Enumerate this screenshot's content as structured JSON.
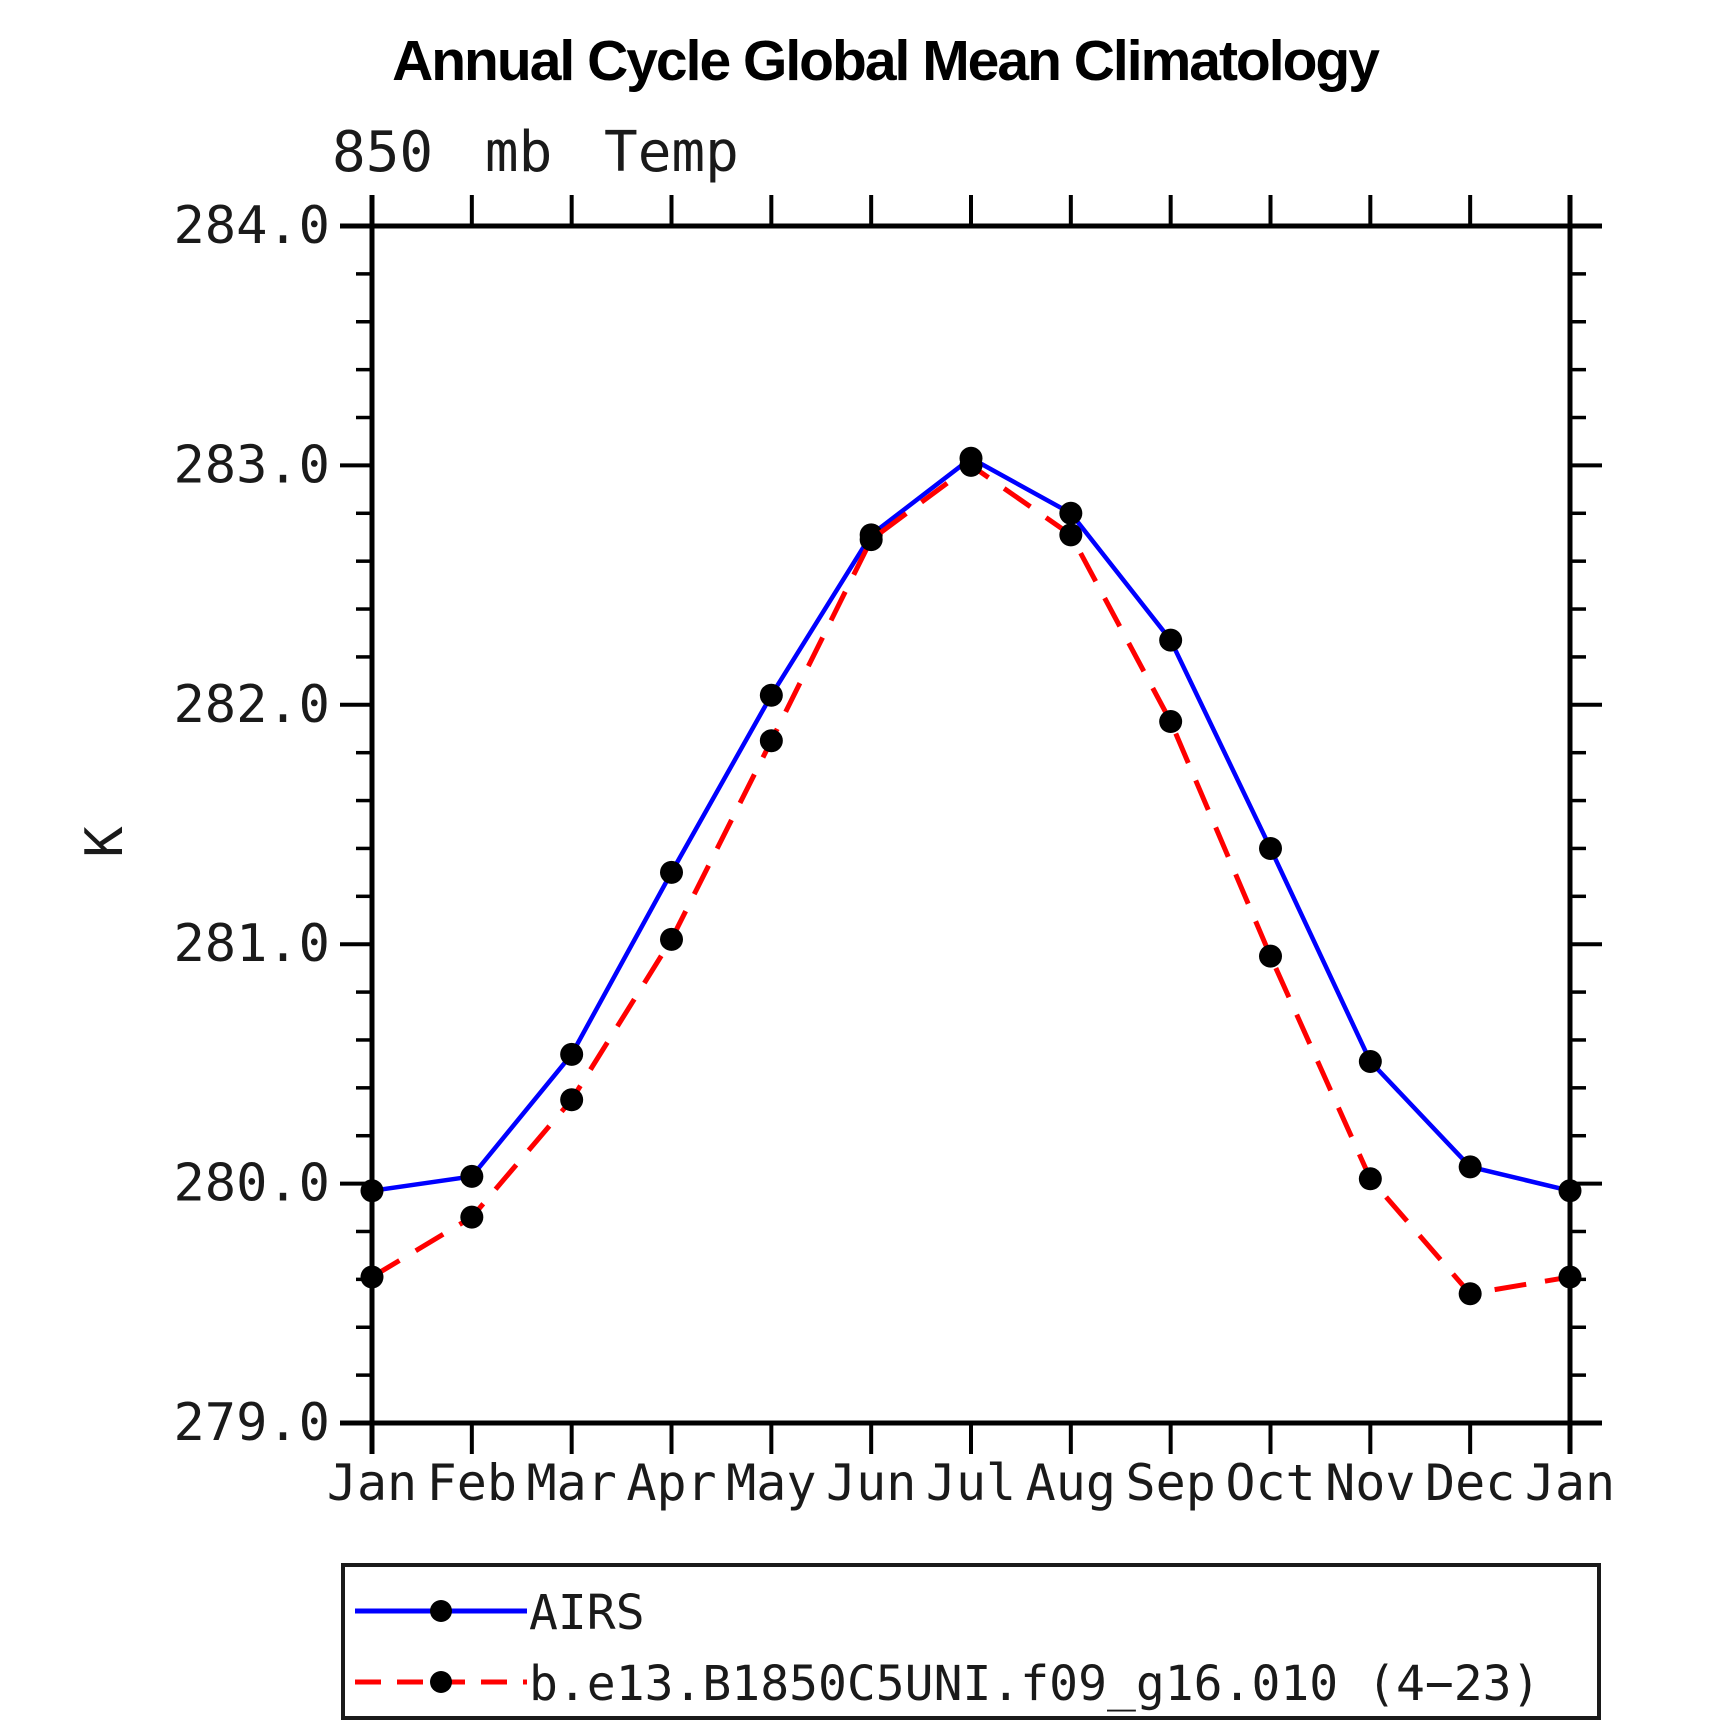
{
  "header": {
    "title": "Annual Cycle Global Mean Climatology",
    "subtitle": "850 mb Temp"
  },
  "chart_data": {
    "type": "line",
    "categories": [
      "Jan",
      "Feb",
      "Mar",
      "Apr",
      "May",
      "Jun",
      "Jul",
      "Aug",
      "Sep",
      "Oct",
      "Nov",
      "Dec",
      "Jan"
    ],
    "series": [
      {
        "name": "AIRS",
        "color": "#0000ff",
        "line_style": "solid",
        "marker": "filled-circle",
        "marker_color": "#000000",
        "values": [
          279.97,
          280.03,
          280.54,
          281.3,
          282.04,
          282.71,
          283.03,
          282.8,
          282.27,
          281.4,
          280.51,
          280.07,
          279.97
        ]
      },
      {
        "name": "b.e13.B1850C5UNI.f09_g16.010 (4−23)",
        "color": "#ff0000",
        "line_style": "dashed",
        "marker": "filled-circle",
        "marker_color": "#000000",
        "values": [
          279.61,
          279.86,
          280.35,
          281.02,
          281.85,
          282.69,
          283.0,
          282.71,
          281.93,
          280.95,
          280.02,
          279.54,
          279.61
        ]
      }
    ],
    "xlabel": "",
    "ylabel": "K",
    "ylim": [
      279.0,
      284.0
    ],
    "y_major_tick_labels": [
      "279.0",
      "280.0",
      "281.0",
      "282.0",
      "283.0",
      "284.0"
    ],
    "y_major_step": 1.0,
    "y_minor_step": 0.2,
    "grid": false,
    "tick_direction": "out",
    "axis_color": "#000000",
    "legend_position": "bottom"
  }
}
